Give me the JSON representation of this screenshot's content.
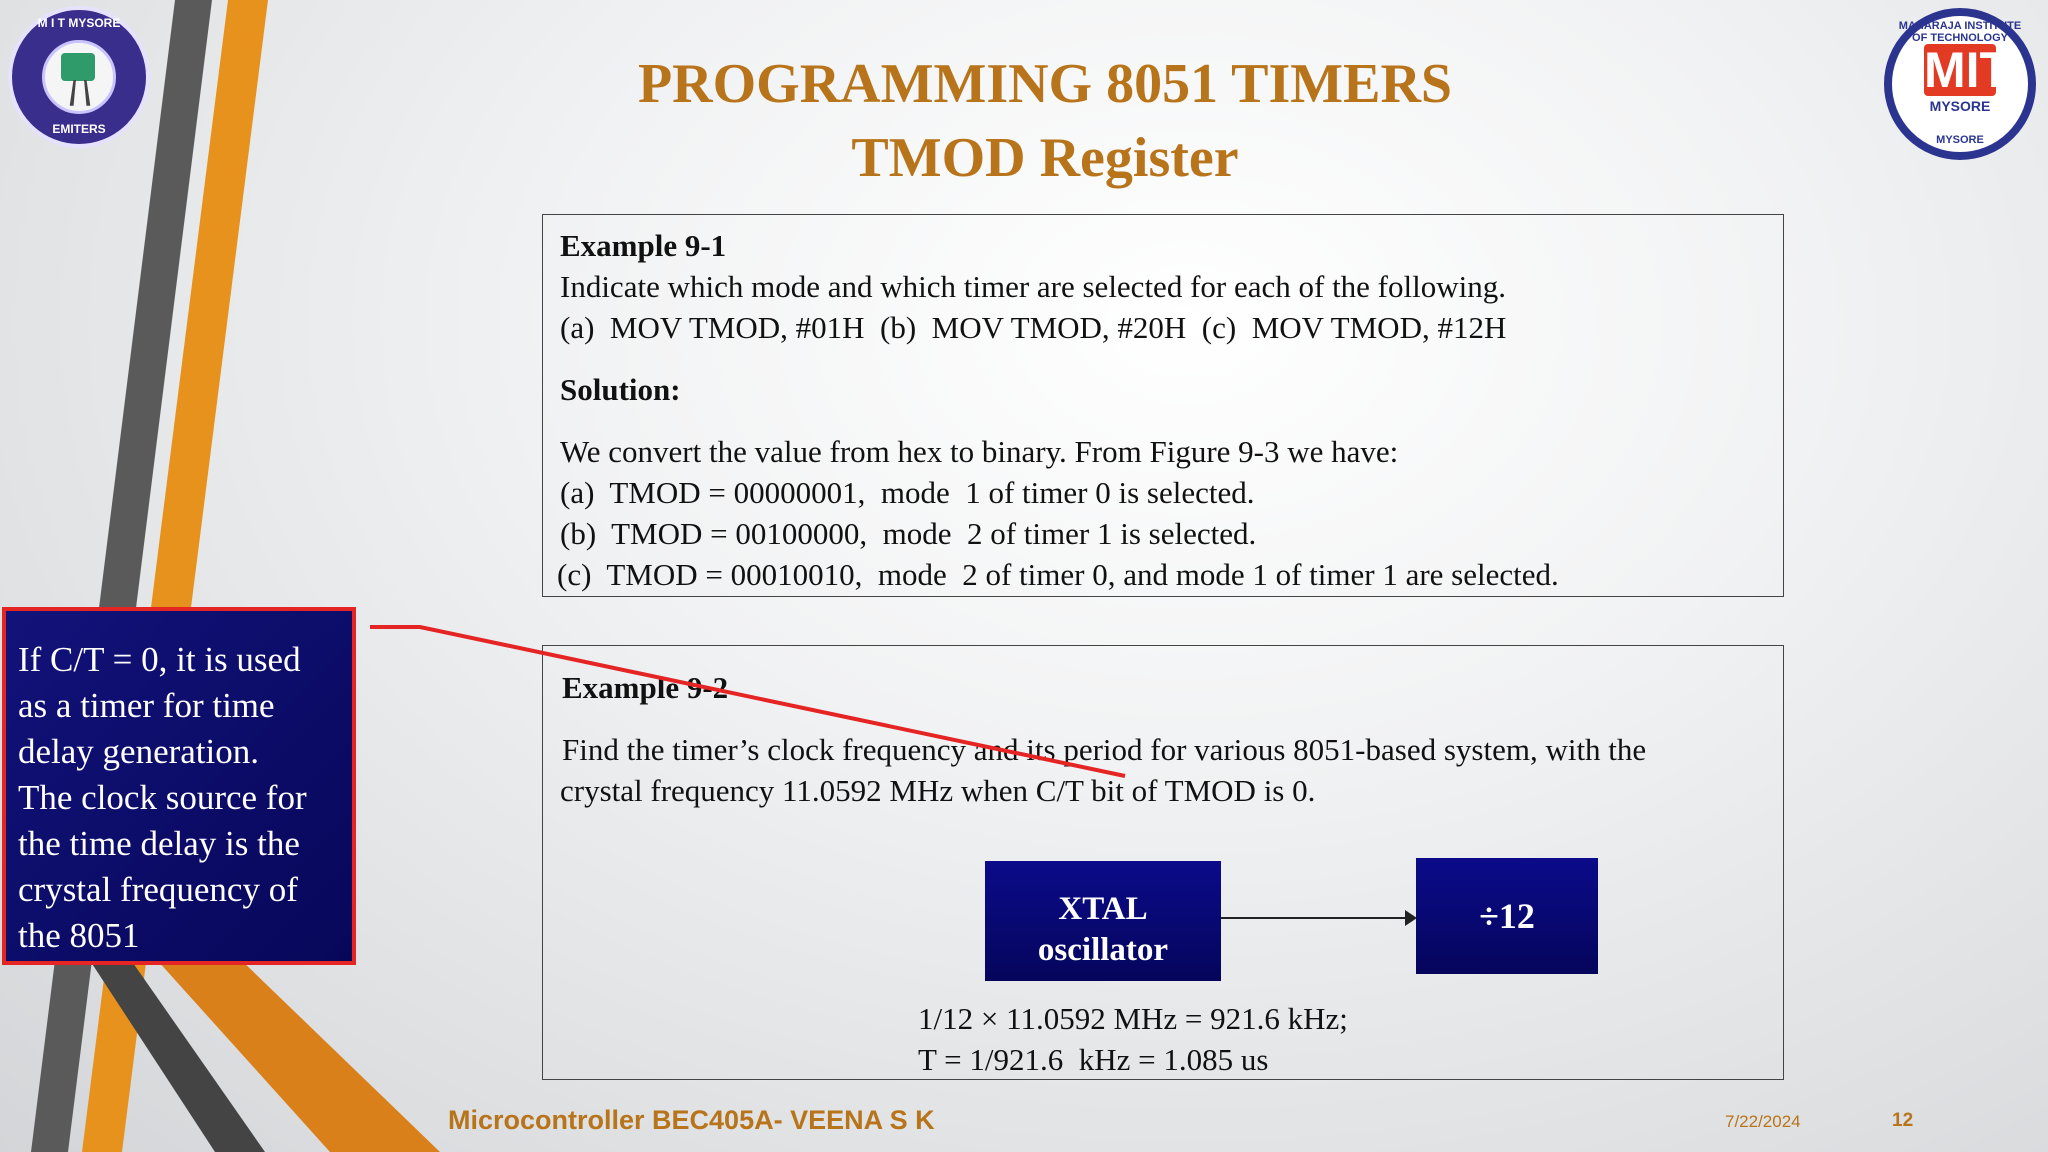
{
  "slide": {
    "title_line1": "PROGRAMMING 8051 TIMERS",
    "title_line2": "TMOD Register"
  },
  "logos": {
    "left": {
      "arc_top": "M I T MYSORE",
      "arc_bottom": "EMITERS"
    },
    "right": {
      "mark": "MIT",
      "city": "MYSORE",
      "arc_top": "MAHARAJA INSTITUTE OF TECHNOLOGY",
      "arc_bottom": "MYSORE"
    }
  },
  "example1": {
    "heading": "Example 9-1",
    "question": "Indicate which mode and which timer are selected for each of the following.",
    "options": "(a)  MOV TMOD, #01H  (b)  MOV TMOD, #20H  (c)  MOV TMOD, #12H",
    "solution_heading": "Solution:",
    "solution_intro": "We convert the value from hex to binary. From Figure 9-3 we have:",
    "answers": [
      "(a)  TMOD = 00000001,  mode  1 of timer 0 is selected.",
      "(b)  TMOD = 00100000,  mode  2 of timer 1 is selected.",
      "(c)  TMOD = 00010010,  mode  2 of timer 0, and mode 1 of timer 1 are selected."
    ]
  },
  "example2": {
    "heading": "Example 9-2",
    "question_line1": "Find the timer’s clock frequency and its period for various 8051-based system, with the",
    "question_line2": "crystal frequency 11.0592 MHz when C/T bit of TMOD is 0.",
    "block_xtal_line1": "XTAL",
    "block_xtal_line2": "oscillator",
    "block_divider": "÷12",
    "result_line1": "1/12 × 11.0592 MHz = 921.6 kHz;",
    "result_line2": "T = 1/921.6  kHz = 1.085 us"
  },
  "callout": {
    "lines": [
      "If C/T = 0, it is used",
      "as a timer for time",
      "delay generation.",
      "The clock source for",
      "the time delay is the",
      "crystal frequency of",
      "the 8051"
    ]
  },
  "footer": {
    "course": "Microcontroller BEC405A- VEENA S K",
    "date": "7/22/2024",
    "page": "12"
  },
  "colors": {
    "title": "#b8741a",
    "callout_bg": "#0c0c72",
    "callout_border": "#e52424",
    "pointer_line": "#e52424",
    "stripe_orange": "#e8921e",
    "stripe_gray": "#555555"
  }
}
